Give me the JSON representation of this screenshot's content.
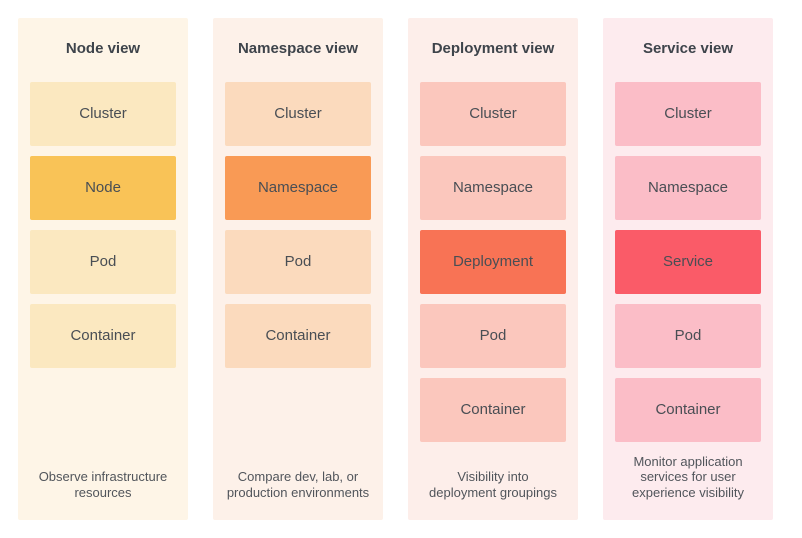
{
  "palette": {
    "page_bg": "#ffffff",
    "title_text": "#3e444b",
    "label_text": "#494e54",
    "desc_text": "#51555b"
  },
  "columns": [
    {
      "title": "Node view",
      "description": "Observe infrastructure resources",
      "background": "#fef5e7",
      "boxes": [
        {
          "label": "Cluster",
          "color": "#fbe8c0",
          "highlighted": false
        },
        {
          "label": "Node",
          "color": "#f9c357",
          "highlighted": true
        },
        {
          "label": "Pod",
          "color": "#fbe8c0",
          "highlighted": false
        },
        {
          "label": "Container",
          "color": "#fbe8c0",
          "highlighted": false
        }
      ]
    },
    {
      "title": "Namespace view",
      "description": "Compare dev, lab, or production environments",
      "background": "#fdf1e9",
      "boxes": [
        {
          "label": "Cluster",
          "color": "#fbdabd",
          "highlighted": false
        },
        {
          "label": "Namespace",
          "color": "#f99a55",
          "highlighted": true
        },
        {
          "label": "Pod",
          "color": "#fbdabd",
          "highlighted": false
        },
        {
          "label": "Container",
          "color": "#fbdabd",
          "highlighted": false
        }
      ]
    },
    {
      "title": "Deployment view",
      "description": "Visibility into deployment groupings",
      "background": "#fdeeea",
      "boxes": [
        {
          "label": "Cluster",
          "color": "#fbc7bd",
          "highlighted": false
        },
        {
          "label": "Namespace",
          "color": "#fbc7bd",
          "highlighted": false
        },
        {
          "label": "Deployment",
          "color": "#f87355",
          "highlighted": true
        },
        {
          "label": "Pod",
          "color": "#fbc7bd",
          "highlighted": false
        },
        {
          "label": "Container",
          "color": "#fbc7bd",
          "highlighted": false
        }
      ]
    },
    {
      "title": "Service view",
      "description": "Monitor application services for user experience visibility",
      "background": "#fdebee",
      "boxes": [
        {
          "label": "Cluster",
          "color": "#fbbdc7",
          "highlighted": false
        },
        {
          "label": "Namespace",
          "color": "#fbbdc7",
          "highlighted": false
        },
        {
          "label": "Service",
          "color": "#fa5b68",
          "highlighted": true
        },
        {
          "label": "Pod",
          "color": "#fbbdc7",
          "highlighted": false
        },
        {
          "label": "Container",
          "color": "#fbbdc7",
          "highlighted": false
        }
      ]
    }
  ]
}
